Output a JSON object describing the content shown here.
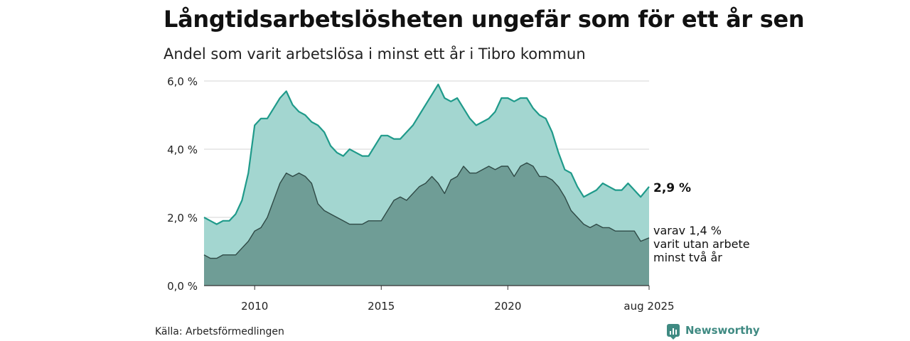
{
  "title": "Långtidsarbetslösheten ungefär som för ett år sen",
  "subtitle": "Andel som varit arbetslösa i minst ett år i Tibro kommun",
  "source": "Källa: Arbetsförmedlingen",
  "brand": "Newsworthy",
  "colors": {
    "upper_fill": "#a3d6d0",
    "upper_line": "#1f9a8a",
    "lower_fill": "#6f9d96",
    "lower_line": "#2f4a46",
    "grid": "#dddddd",
    "brand": "#3f8a82"
  },
  "chart_data": {
    "type": "area",
    "x_start": "2008-01",
    "x_end": "2025-08",
    "xticks": [
      {
        "x": 2010,
        "label": "2010"
      },
      {
        "x": 2015,
        "label": "2015"
      },
      {
        "x": 2020,
        "label": "2020"
      },
      {
        "x": 2025.58,
        "label": "aug 2025"
      }
    ],
    "ylim": [
      0,
      6
    ],
    "yticks": [
      {
        "y": 0,
        "label": "0,0 %"
      },
      {
        "y": 2,
        "label": "2,0 %"
      },
      {
        "y": 4,
        "label": "4,0 %"
      },
      {
        "y": 6,
        "label": "6,0 %"
      }
    ],
    "grid": true,
    "end_labels": {
      "main": "2,9 %",
      "sub": [
        "varav 1,4 %",
        "varit utan arbete",
        "minst två år"
      ]
    },
    "series": [
      {
        "x": [
          2008.0,
          2008.25,
          2008.5,
          2008.75,
          2009.0,
          2009.25,
          2009.5,
          2009.75,
          2010.0,
          2010.25,
          2010.5,
          2010.75,
          2011.0,
          2011.25,
          2011.5,
          2011.75,
          2012.0,
          2012.25,
          2012.5,
          2012.75,
          2013.0,
          2013.25,
          2013.5,
          2013.75,
          2014.0,
          2014.25,
          2014.5,
          2014.75,
          2015.0,
          2015.25,
          2015.5,
          2015.75,
          2016.0,
          2016.25,
          2016.5,
          2016.75,
          2017.0,
          2017.25,
          2017.5,
          2017.75,
          2018.0,
          2018.25,
          2018.5,
          2018.75,
          2019.0,
          2019.25,
          2019.5,
          2019.75,
          2020.0,
          2020.25,
          2020.5,
          2020.75,
          2021.0,
          2021.25,
          2021.5,
          2021.75,
          2022.0,
          2022.25,
          2022.5,
          2022.75,
          2023.0,
          2023.25,
          2023.5,
          2023.75,
          2024.0,
          2024.25,
          2024.5,
          2024.75,
          2025.0,
          2025.25,
          2025.58
        ],
        "values": [
          2.0,
          1.9,
          1.8,
          1.9,
          1.9,
          2.1,
          2.5,
          3.3,
          4.7,
          4.9,
          4.9,
          5.2,
          5.5,
          5.7,
          5.3,
          5.1,
          5.0,
          4.8,
          4.7,
          4.5,
          4.1,
          3.9,
          3.8,
          4.0,
          3.9,
          3.8,
          3.8,
          4.1,
          4.4,
          4.4,
          4.3,
          4.3,
          4.5,
          4.7,
          5.0,
          5.3,
          5.6,
          5.9,
          5.5,
          5.4,
          5.5,
          5.2,
          4.9,
          4.7,
          4.8,
          4.9,
          5.1,
          5.5,
          5.5,
          5.4,
          5.5,
          5.5,
          5.2,
          5.0,
          4.9,
          4.5,
          3.9,
          3.4,
          3.3,
          2.9,
          2.6,
          2.7,
          2.8,
          3.0,
          2.9,
          2.8,
          2.8,
          3.0,
          2.8,
          2.6,
          2.9
        ]
      },
      {
        "x": [
          2008.0,
          2008.25,
          2008.5,
          2008.75,
          2009.0,
          2009.25,
          2009.5,
          2009.75,
          2010.0,
          2010.25,
          2010.5,
          2010.75,
          2011.0,
          2011.25,
          2011.5,
          2011.75,
          2012.0,
          2012.25,
          2012.5,
          2012.75,
          2013.0,
          2013.25,
          2013.5,
          2013.75,
          2014.0,
          2014.25,
          2014.5,
          2014.75,
          2015.0,
          2015.25,
          2015.5,
          2015.75,
          2016.0,
          2016.25,
          2016.5,
          2016.75,
          2017.0,
          2017.25,
          2017.5,
          2017.75,
          2018.0,
          2018.25,
          2018.5,
          2018.75,
          2019.0,
          2019.25,
          2019.5,
          2019.75,
          2020.0,
          2020.25,
          2020.5,
          2020.75,
          2021.0,
          2021.25,
          2021.5,
          2021.75,
          2022.0,
          2022.25,
          2022.5,
          2022.75,
          2023.0,
          2023.25,
          2023.5,
          2023.75,
          2024.0,
          2024.25,
          2024.5,
          2024.75,
          2025.0,
          2025.25,
          2025.58
        ],
        "values": [
          0.9,
          0.8,
          0.8,
          0.9,
          0.9,
          0.9,
          1.1,
          1.3,
          1.6,
          1.7,
          2.0,
          2.5,
          3.0,
          3.3,
          3.2,
          3.3,
          3.2,
          3.0,
          2.4,
          2.2,
          2.1,
          2.0,
          1.9,
          1.8,
          1.8,
          1.8,
          1.9,
          1.9,
          1.9,
          2.2,
          2.5,
          2.6,
          2.5,
          2.7,
          2.9,
          3.0,
          3.2,
          3.0,
          2.7,
          3.1,
          3.2,
          3.5,
          3.3,
          3.3,
          3.4,
          3.5,
          3.4,
          3.5,
          3.5,
          3.2,
          3.5,
          3.6,
          3.5,
          3.2,
          3.2,
          3.1,
          2.9,
          2.6,
          2.2,
          2.0,
          1.8,
          1.7,
          1.8,
          1.7,
          1.7,
          1.6,
          1.6,
          1.6,
          1.6,
          1.3,
          1.4
        ]
      }
    ]
  }
}
